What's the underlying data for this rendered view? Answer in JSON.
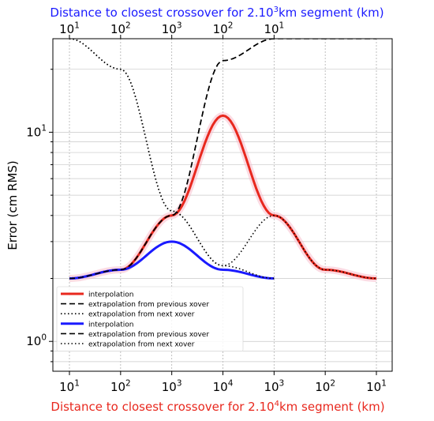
{
  "chart_data": {
    "type": "line",
    "title_top": "Distance to closest crossover for 2.10³km segment (km)",
    "title_top_parts": [
      "Distance to closest crossover for 2.10",
      "3",
      "km segment (km)"
    ],
    "xlabel_bottom": "Distance to closest crossover for 2.10⁴km segment (km)",
    "xlabel_bottom_parts": [
      "Distance to closest crossover for 2.10",
      "4",
      "km segment (km)"
    ],
    "ylabel": "Error (cm RMS)",
    "yscale": "log",
    "ylim": [
      0.72,
      28
    ],
    "grid": true,
    "colors": {
      "top_axis": "#1a1aff",
      "bottom_axis": "#e8281e",
      "red": "#e8281e",
      "blue": "#1a1aff",
      "black": "#000000"
    },
    "bottom_ticks": [
      {
        "base": "10",
        "exp": "1"
      },
      {
        "base": "10",
        "exp": "2"
      },
      {
        "base": "10",
        "exp": "3"
      },
      {
        "base": "10",
        "exp": "4"
      },
      {
        "base": "10",
        "exp": "3"
      },
      {
        "base": "10",
        "exp": "2"
      },
      {
        "base": "10",
        "exp": "1"
      }
    ],
    "top_ticks": [
      {
        "base": "10",
        "exp": "1"
      },
      {
        "base": "10",
        "exp": "2"
      },
      {
        "base": "10",
        "exp": "3"
      },
      {
        "base": "10",
        "exp": "2"
      },
      {
        "base": "10",
        "exp": "1"
      }
    ],
    "y_ticks": [
      {
        "value": 1,
        "base": "10",
        "exp": "0"
      },
      {
        "value": 10,
        "base": "10",
        "exp": "1"
      }
    ],
    "y_minor_ticks": [
      0.8,
      0.9,
      2,
      3,
      4,
      5,
      6,
      7,
      8,
      9,
      20
    ],
    "series": [
      {
        "name": "interpolation",
        "color": "#e8281e",
        "style": "solid",
        "segment": "2.10^4 km",
        "x": [
          10,
          100,
          1000,
          10000,
          1000,
          100,
          10
        ],
        "y": [
          2.0,
          2.2,
          4.0,
          12.0,
          4.0,
          2.2,
          2.0
        ]
      },
      {
        "name": "extrapolation from previous xover",
        "color": "#000000",
        "style": "dashed",
        "segment": "2.10^4 km",
        "x": [
          10,
          100,
          1000,
          10000,
          1000,
          100,
          10
        ],
        "y": [
          2.0,
          2.2,
          4.0,
          22.0,
          28.0,
          28.0,
          28.0
        ]
      },
      {
        "name": "extrapolation from next xover",
        "color": "#000000",
        "style": "dotted",
        "segment": "2.10^4 km",
        "x": [
          10,
          100,
          1000,
          10000,
          1000,
          100,
          10
        ],
        "y": [
          28.0,
          20.0,
          4.2,
          2.3,
          4.0,
          2.2,
          2.0
        ]
      },
      {
        "name": "interpolation",
        "color": "#1a1aff",
        "style": "solid",
        "segment": "2.10^3 km",
        "x": [
          10,
          100,
          1000,
          100,
          10
        ],
        "y": [
          2.0,
          2.2,
          3.0,
          2.2,
          2.0
        ]
      },
      {
        "name": "extrapolation from previous xover",
        "color": "#000000",
        "style": "dashed",
        "segment": "2.10^3 km",
        "x": [
          10,
          100,
          1000,
          100,
          10
        ],
        "y": [
          2.0,
          2.2,
          4.0,
          22.0,
          28.0
        ]
      },
      {
        "name": "extrapolation from next xover",
        "color": "#000000",
        "style": "dotted",
        "segment": "2.10^3 km",
        "x": [
          10,
          100,
          1000,
          100,
          10
        ],
        "y": [
          28.0,
          20.0,
          4.2,
          2.3,
          2.0
        ]
      }
    ],
    "legend_placement": "lower-left"
  }
}
